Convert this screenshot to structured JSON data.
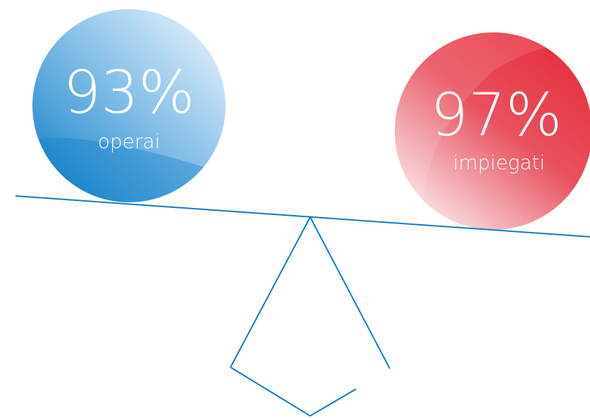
{
  "items": [
    {
      "value": "93%",
      "label": "operai"
    },
    {
      "value": "97%",
      "label": "impiegati"
    }
  ]
}
